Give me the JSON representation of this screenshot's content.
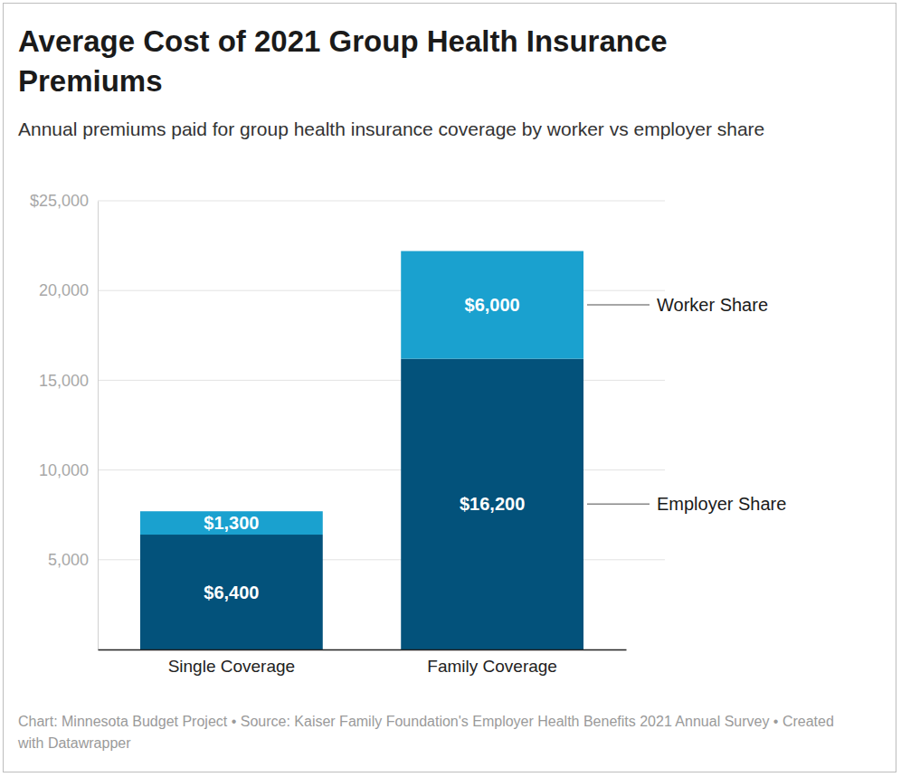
{
  "chart_data": {
    "type": "bar",
    "title": "Average Cost of 2021 Group Health Insurance Premiums",
    "subtitle": "Annual premiums paid for group health insurance coverage by worker vs employer share",
    "source": "Chart: Minnesota Budget Project • Source: Kaiser Family Foundation's Employer Health Benefits 2021 Annual Survey • Created with Datawrapper",
    "categories": [
      "Single Coverage",
      "Family Coverage"
    ],
    "series": [
      {
        "name": "Employer Share",
        "color": "#03527b",
        "values": [
          6400,
          16200
        ],
        "value_labels": [
          "$6,400",
          "$16,200"
        ]
      },
      {
        "name": "Worker Share",
        "color": "#1aa1cf",
        "values": [
          1300,
          6000
        ],
        "value_labels": [
          "$1,300",
          "$6,000"
        ]
      }
    ],
    "stacked": true,
    "data_labels": true,
    "legend": "right",
    "grid": true,
    "ylim": [
      0,
      25000
    ],
    "yticks": [
      {
        "value": 5000,
        "label": "5,000"
      },
      {
        "value": 10000,
        "label": "10,000"
      },
      {
        "value": 15000,
        "label": "15,000"
      },
      {
        "value": 20000,
        "label": "20,000"
      },
      {
        "value": 25000,
        "label": "$25,000"
      }
    ]
  }
}
